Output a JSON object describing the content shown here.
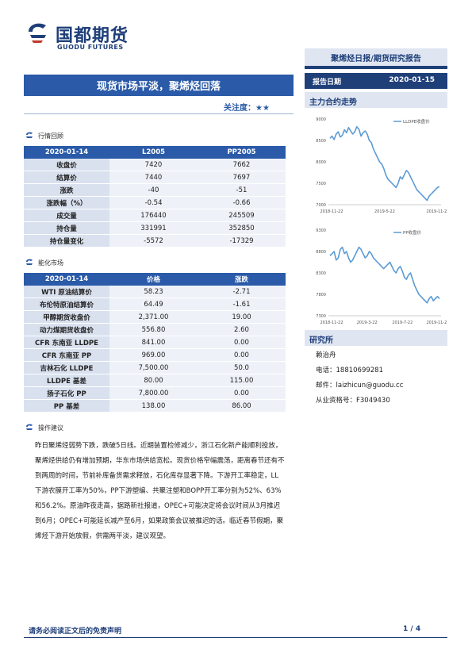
{
  "logo": {
    "cn": "国都期货",
    "en": "GUODU FUTURES"
  },
  "report_type": "聚烯烃日报/期货研究报告",
  "date_label": "报告日期",
  "date_value": "2020-01-15",
  "title": "现货市场平淡，聚烯烃回落",
  "focus": "关注度：★★",
  "section1": {
    "title": "行情回顾",
    "headers": [
      "2020-01-14",
      "L2005",
      "PP2005"
    ],
    "rows": [
      [
        "收盘价",
        "7420",
        "7662"
      ],
      [
        "结算价",
        "7440",
        "7697"
      ],
      [
        "涨跌",
        "-40",
        "-51"
      ],
      [
        "涨跌幅（%）",
        "-0.54",
        "-0.66"
      ],
      [
        "成交量",
        "176440",
        "245509"
      ],
      [
        "持仓量",
        "331991",
        "352850"
      ],
      [
        "持仓量变化",
        "-5572",
        "-17329"
      ]
    ]
  },
  "section2": {
    "title": "能化市场",
    "headers": [
      "2020-01-14",
      "价格",
      "涨跌"
    ],
    "rows": [
      [
        "WTI 原油结算价",
        "58.23",
        "-2.71"
      ],
      [
        "布伦特原油结算价",
        "64.49",
        "-1.61"
      ],
      [
        "甲醇期货收盘价",
        "2,371.00",
        "19.00"
      ],
      [
        "动力煤期货收盘价",
        "556.80",
        "2.60"
      ],
      [
        "CFR 东南亚 LLDPE",
        "841.00",
        "0.00"
      ],
      [
        "CFR 东南亚 PP",
        "969.00",
        "0.00"
      ],
      [
        "吉林石化 LLDPE",
        "7,500.00",
        "50.0"
      ],
      [
        "LLDPE 基差",
        "80.00",
        "115.00"
      ],
      [
        "扬子石化 PP",
        "7,800.00",
        "0.00"
      ],
      [
        "PP 基差",
        "138.00",
        "86.00"
      ]
    ]
  },
  "section3": {
    "title": "操作建议",
    "text": "昨日聚烯烃弱势下跌，跌破5日线。近期装置检修减少，浙江石化新产能顺利投放，聚烯烃供给仍有增加预期，华东市场供给宽松。现货价格窄幅震荡，距离春节还有不到两周的时间，节前补库备货需求释放，石化库存显著下降。下游开工率稳定，LL下游农膜开工率为50%，PP下游塑编、共聚注塑和BOPP开工率分别为52%、63%和56.2%。原油昨夜走高，据路新社报道，OPEC+可能决定将会议时间从3月推迟到6月；OPEC+可能延长减产至6月，如果政策会议被推迟的话。临近春节假期，聚烯烃下游开始放假，供需两平淡，建议观望。"
  },
  "right": {
    "main_contract": "主力合约走势",
    "research": "研究所",
    "name": "赖治舟",
    "phone": "电话：18810699281",
    "email": "邮件：laizhicun@guodu.cc",
    "cert": "从业资格号：F3049430"
  },
  "footer": {
    "disclaimer": "请务必阅读正文后的免责声明",
    "page": "1 / 4"
  },
  "chart_data": [
    {
      "type": "line",
      "legend": "LLDPE收盘价",
      "ylim": [
        7000,
        9000
      ],
      "yticks": [
        "9000",
        "8500",
        "8000",
        "7500",
        "7000"
      ],
      "xticks": [
        "2018-11-22",
        "2019-5-22",
        "2019-11-22"
      ],
      "series": [
        {
          "name": "LLDPE收盘价",
          "color": "#5b9bd5",
          "values": [
            8550,
            8600,
            8520,
            8650,
            8700,
            8580,
            8620,
            8750,
            8680,
            8800,
            8720,
            8650,
            8700,
            8820,
            8760,
            8600,
            8680,
            8720,
            8650,
            8500,
            8450,
            8300,
            8200,
            8100,
            8000,
            7950,
            7850,
            7700,
            7600,
            7550,
            7500,
            7450,
            7400,
            7500,
            7650,
            7600,
            7700,
            7800,
            7750,
            7650,
            7550,
            7450,
            7350,
            7300,
            7250,
            7200,
            7150,
            7100,
            7200,
            7250,
            7300,
            7350,
            7400,
            7420
          ]
        }
      ]
    },
    {
      "type": "line",
      "legend": "PP收盘价",
      "ylim": [
        7300,
        9300
      ],
      "yticks": [
        "9300",
        "8800",
        "8300",
        "7800",
        "7300"
      ],
      "xticks": [
        "2018-11-22",
        "2019-3-22",
        "2019-7-22",
        "2019-11-22"
      ],
      "series": [
        {
          "name": "PP收盘价",
          "color": "#5b9bd5",
          "values": [
            8700,
            8750,
            8800,
            8600,
            8650,
            8850,
            8900,
            8750,
            8800,
            8650,
            8550,
            8600,
            8700,
            8800,
            8900,
            8850,
            8750,
            8650,
            8700,
            8800,
            8750,
            8650,
            8600,
            8550,
            8500,
            8450,
            8400,
            8450,
            8500,
            8550,
            8450,
            8350,
            8300,
            8400,
            8450,
            8350,
            8200,
            8150,
            8250,
            8300,
            8150,
            8000,
            7900,
            7800,
            7750,
            7700,
            7650,
            7600,
            7700,
            7750,
            7650,
            7700,
            7750,
            7700
          ]
        }
      ]
    }
  ]
}
